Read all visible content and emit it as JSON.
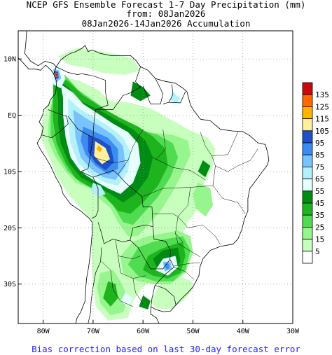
{
  "title": {
    "line1": "NCEP GFS Ensemble Forecast 1-7 Day Precipitation (mm)",
    "line2": "from: 08Jan2026",
    "line3": "08Jan2026-14Jan2026 Accumulation"
  },
  "footer": "Bias correction based on last 30-day forecast error",
  "map": {
    "region": "South America",
    "lon_range": [
      -85,
      -30
    ],
    "lat_range": [
      -37,
      15
    ],
    "grid": "dotted",
    "lat_ticks": [
      {
        "value": 10,
        "label": "10N"
      },
      {
        "value": 0,
        "label": "EQ"
      },
      {
        "value": -10,
        "label": "10S"
      },
      {
        "value": -20,
        "label": "20S"
      },
      {
        "value": -30,
        "label": "30S"
      }
    ],
    "lon_ticks": [
      {
        "value": -80,
        "label": "80W"
      },
      {
        "value": -70,
        "label": "70W"
      },
      {
        "value": -60,
        "label": "60W"
      },
      {
        "value": -50,
        "label": "50W"
      },
      {
        "value": -40,
        "label": "40W"
      },
      {
        "value": -30,
        "label": "30W"
      }
    ]
  },
  "legend": {
    "levels": [
      {
        "label": "135",
        "color": "#c80a0a"
      },
      {
        "label": "125",
        "color": "#ff6a00"
      },
      {
        "label": "115",
        "color": "#ffb400"
      },
      {
        "label": "105",
        "color": "#fff0a0"
      },
      {
        "label": "95",
        "color": "#1e50c8"
      },
      {
        "label": "85",
        "color": "#3c8cf0"
      },
      {
        "label": "75",
        "color": "#78c3ff"
      },
      {
        "label": "65",
        "color": "#b4f0fa"
      },
      {
        "label": "55",
        "color": "#e6ffff"
      },
      {
        "label": "45",
        "color": "#008c14"
      },
      {
        "label": "35",
        "color": "#1eb41e"
      },
      {
        "label": "25",
        "color": "#50dc50"
      },
      {
        "label": "15",
        "color": "#96f58c"
      },
      {
        "label": "5",
        "color": "#c8ffbe"
      },
      {
        "label": "",
        "color": "#ffffff"
      }
    ]
  }
}
